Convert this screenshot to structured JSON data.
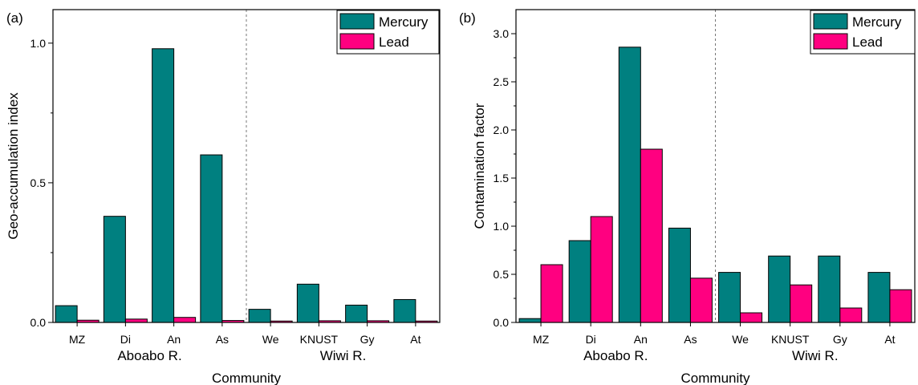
{
  "colors": {
    "mercury": "#008080",
    "lead": "#ff0080"
  },
  "chart_data": [
    {
      "type": "bar",
      "panel_label": "(a)",
      "categories": [
        "MZ",
        "Di",
        "An",
        "As",
        "We",
        "KNUST",
        "Gy",
        "At"
      ],
      "groups": [
        "Aboabo R.",
        "Wiwi R."
      ],
      "xlabel": "Community",
      "ylabel": "Geo-accumulation index",
      "ylim": [
        0,
        1.12
      ],
      "yticks": [
        "0.0",
        "0.5",
        "1.0"
      ],
      "legend_position": "top-right",
      "series": [
        {
          "name": "Mercury",
          "values": [
            0.06,
            0.38,
            0.98,
            0.6,
            0.047,
            0.137,
            0.062,
            0.082
          ]
        },
        {
          "name": "Lead",
          "values": [
            0.008,
            0.012,
            0.018,
            0.007,
            0.005,
            0.006,
            0.006,
            0.005
          ]
        }
      ]
    },
    {
      "type": "bar",
      "panel_label": "(b)",
      "categories": [
        "MZ",
        "Di",
        "An",
        "As",
        "We",
        "KNUST",
        "Gy",
        "At"
      ],
      "groups": [
        "Aboabo R.",
        "Wiwi R."
      ],
      "xlabel": "Community",
      "ylabel": "Contamination factor",
      "ylim": [
        0,
        3.25
      ],
      "yticks": [
        "0.0",
        "0.5",
        "1.0",
        "1.5",
        "2.0",
        "2.5",
        "3.0"
      ],
      "legend_position": "top-right",
      "series": [
        {
          "name": "Mercury",
          "values": [
            0.04,
            0.85,
            2.86,
            0.98,
            0.52,
            0.69,
            0.69,
            0.52
          ]
        },
        {
          "name": "Lead",
          "values": [
            0.6,
            1.1,
            1.8,
            0.46,
            0.1,
            0.39,
            0.15,
            0.34
          ]
        }
      ]
    }
  ]
}
